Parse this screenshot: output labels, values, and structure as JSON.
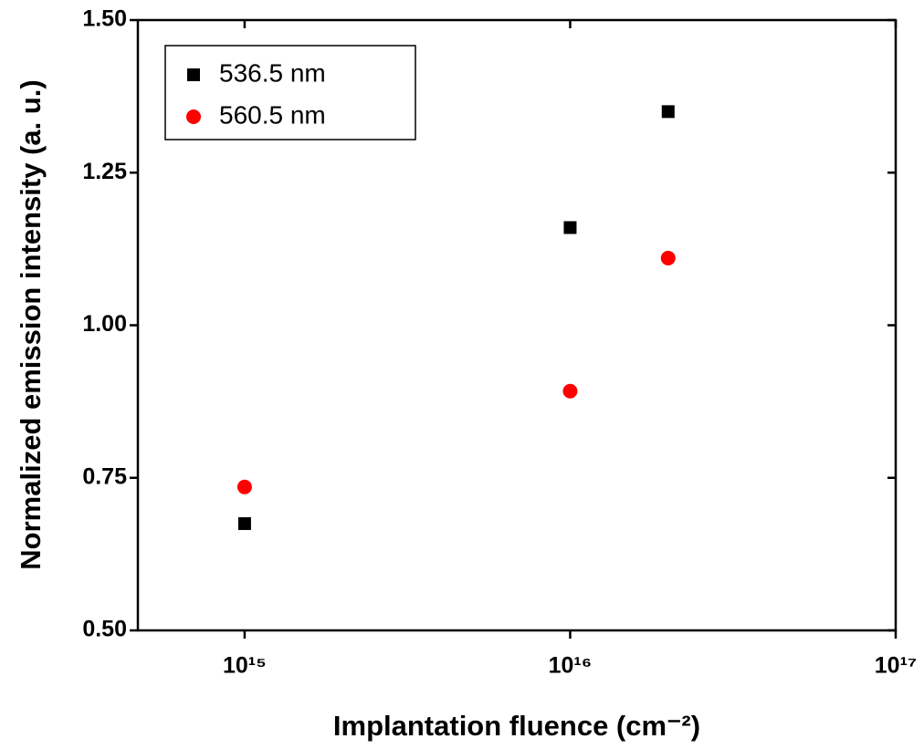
{
  "chart_data": {
    "type": "scatter",
    "x_label": "Implantation fluence (cm⁻²)",
    "y_label": "Normalized emission intensity (a. u.)",
    "series": [
      {
        "name": "536.5 nm",
        "color": "#000000",
        "marker": "square",
        "x": [
          1000000000000000.0,
          1e+16,
          2e+16
        ],
        "values": [
          0.675,
          1.16,
          1.35
        ]
      },
      {
        "name": "560.5 nm",
        "color": "#ff0000",
        "marker": "circle",
        "x": [
          1000000000000000.0,
          1e+16,
          2e+16
        ],
        "values": [
          0.735,
          0.892,
          1.11
        ]
      }
    ],
    "xlim": [
      470000000000000.0,
      1e+17
    ],
    "xlog": true,
    "xticks": [
      {
        "value": 1000000000000000.0,
        "label": "10¹⁵"
      },
      {
        "value": 1e+16,
        "label": "10¹⁶"
      },
      {
        "value": 1e+17,
        "label": "10¹⁷"
      }
    ],
    "ylim": [
      0.5,
      1.5
    ],
    "yticks": [
      {
        "value": 0.5,
        "label": "0.50"
      },
      0.75,
      {
        "value": 1.0,
        "label": "1.00"
      },
      1.25,
      {
        "value": 1.5,
        "label": "1.50"
      }
    ],
    "legend": "upper left"
  }
}
